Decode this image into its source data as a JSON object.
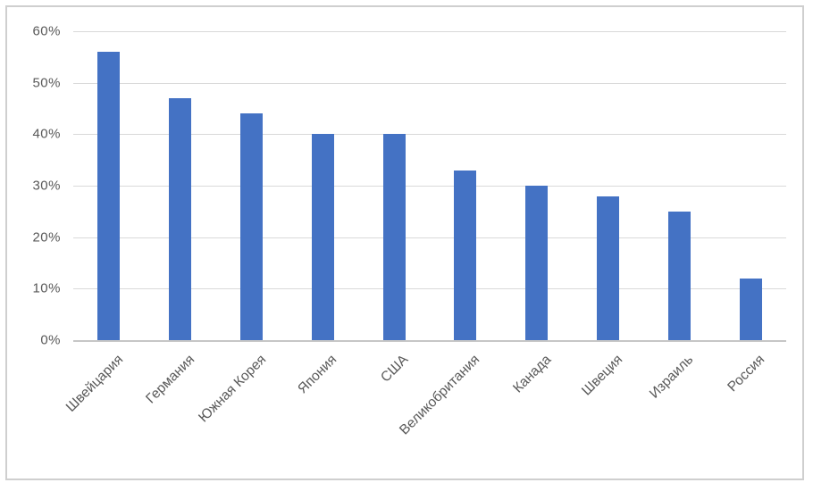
{
  "chart_data": {
    "type": "bar",
    "title": "",
    "xlabel": "",
    "ylabel": "",
    "categories": [
      "Швейцария",
      "Германия",
      "Южная Корея",
      "Япония",
      "США",
      "Великобритания",
      "Канада",
      "Швеция",
      "Израиль",
      "Россия"
    ],
    "values": [
      56,
      47,
      44,
      40,
      40,
      33,
      30,
      28,
      25,
      12
    ],
    "unit": "%",
    "ylim": [
      0,
      60
    ],
    "ytick_step": 10,
    "ytick_labels": [
      "0%",
      "10%",
      "20%",
      "30%",
      "40%",
      "50%",
      "60%"
    ],
    "grid": true,
    "legend": false,
    "colors": {
      "bar": "#4472c4",
      "gridline": "#d9d9d9",
      "axis_line": "#c6c6c6",
      "label_text": "#595959",
      "frame_border": "#cfcfcf",
      "background": "#ffffff"
    }
  }
}
